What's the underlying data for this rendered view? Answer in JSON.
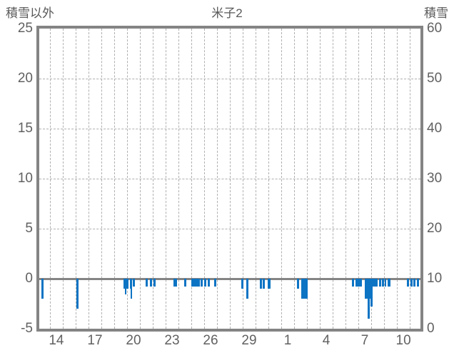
{
  "header": {
    "left_axis_title": "積雪以外",
    "title": "米子2",
    "right_axis_title": "積雪"
  },
  "colors": {
    "bar": "#0d74c4",
    "frame": "#848484",
    "grid": "#b0b0b0",
    "text": "#595959"
  },
  "chart_data": {
    "type": "bar",
    "title": "米子2",
    "grid": true,
    "left_axis": {
      "label": "積雪以外",
      "min": -5,
      "max": 25,
      "ticks": [
        25,
        20,
        15,
        10,
        5,
        0,
        -5
      ]
    },
    "right_axis": {
      "label": "積雪",
      "min": 0,
      "max": 60,
      "ticks": [
        60,
        50,
        40,
        30,
        20,
        10,
        0
      ]
    },
    "x_axis": {
      "day_min": 13.17,
      "day_max": 42.83,
      "gridline_every_days": 1,
      "tick_labels": [
        {
          "label": "14",
          "day": 14
        },
        {
          "label": "17",
          "day": 17
        },
        {
          "label": "20",
          "day": 20
        },
        {
          "label": "23",
          "day": 23
        },
        {
          "label": "26",
          "day": 26
        },
        {
          "label": "29",
          "day": 29
        },
        {
          "label": "1",
          "day": 32
        },
        {
          "label": "4",
          "day": 35
        },
        {
          "label": "7",
          "day": 38
        },
        {
          "label": "10",
          "day": 41
        }
      ]
    },
    "zero_line_left_value": 0,
    "hgrid_left_values": [
      20,
      15,
      10,
      5
    ],
    "bars": [
      {
        "d": 13.33,
        "w": 0.17,
        "v": -2.0
      },
      {
        "d": 16.03,
        "w": 0.17,
        "v": -3.0
      },
      {
        "d": 19.72,
        "w": 0.39,
        "v": -1.0
      },
      {
        "d": 19.83,
        "w": 0.14,
        "v": -1.6
      },
      {
        "d": 20.22,
        "w": 0.17,
        "v": -1.0
      },
      {
        "d": 20.25,
        "w": 0.11,
        "v": -2.0
      },
      {
        "d": 20.44,
        "w": 0.17,
        "v": -0.8
      },
      {
        "d": 21.44,
        "w": 0.17,
        "v": -0.8
      },
      {
        "d": 21.78,
        "w": 0.17,
        "v": -0.8
      },
      {
        "d": 22.06,
        "w": 0.17,
        "v": -0.8
      },
      {
        "d": 23.61,
        "w": 0.28,
        "v": -0.8
      },
      {
        "d": 24.44,
        "w": 0.17,
        "v": -0.8
      },
      {
        "d": 25.0,
        "w": 0.67,
        "v": -0.8
      },
      {
        "d": 25.72,
        "w": 0.14,
        "v": -0.8
      },
      {
        "d": 26.0,
        "w": 0.14,
        "v": -0.8
      },
      {
        "d": 26.28,
        "w": 0.14,
        "v": -0.8
      },
      {
        "d": 26.78,
        "w": 0.14,
        "v": -0.8
      },
      {
        "d": 28.89,
        "w": 0.17,
        "v": -1.0
      },
      {
        "d": 29.28,
        "w": 0.14,
        "v": -2.0
      },
      {
        "d": 30.33,
        "w": 0.19,
        "v": -1.0
      },
      {
        "d": 30.56,
        "w": 0.14,
        "v": -1.0
      },
      {
        "d": 30.94,
        "w": 0.22,
        "v": -1.0
      },
      {
        "d": 33.22,
        "w": 0.14,
        "v": -1.0
      },
      {
        "d": 33.56,
        "w": 0.5,
        "v": -2.0
      },
      {
        "d": 37.5,
        "w": 0.14,
        "v": -0.75
      },
      {
        "d": 37.78,
        "w": 0.5,
        "v": -0.75
      },
      {
        "d": 38.5,
        "w": 1.0,
        "v": -0.75
      },
      {
        "d": 38.5,
        "w": 0.56,
        "v": -2.0
      },
      {
        "d": 38.72,
        "w": 0.14,
        "v": -4.0
      },
      {
        "d": 38.94,
        "w": 0.14,
        "v": -2.8
      },
      {
        "d": 39.61,
        "w": 0.14,
        "v": -0.75
      },
      {
        "d": 39.83,
        "w": 0.14,
        "v": -0.75
      },
      {
        "d": 40.06,
        "w": 0.11,
        "v": -0.75
      },
      {
        "d": 40.28,
        "w": 0.22,
        "v": -0.75
      },
      {
        "d": 41.78,
        "w": 0.14,
        "v": -0.75
      },
      {
        "d": 42.06,
        "w": 0.14,
        "v": -0.75
      },
      {
        "d": 42.28,
        "w": 0.14,
        "v": -0.75
      },
      {
        "d": 42.56,
        "w": 0.14,
        "v": -0.75
      }
    ]
  }
}
